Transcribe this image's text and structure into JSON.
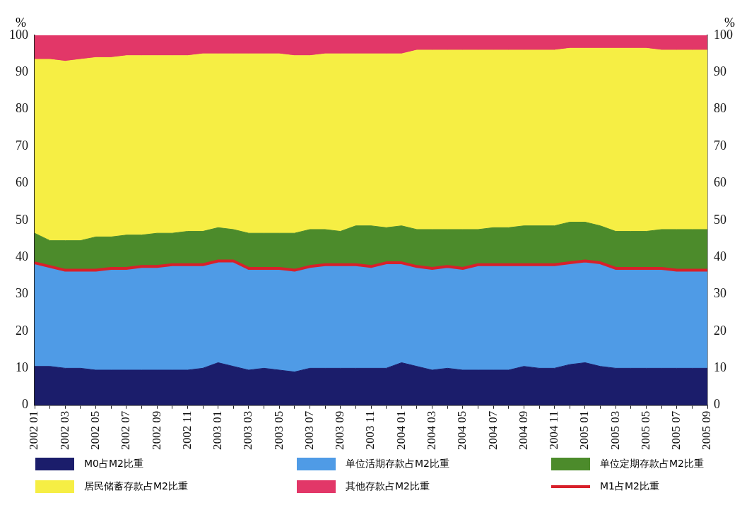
{
  "chart_data": {
    "type": "area",
    "stacked": true,
    "categories": [
      "2002 01",
      null,
      "2002 03",
      null,
      "2002 05",
      null,
      "2002 07",
      null,
      "2002 09",
      null,
      "2002 11",
      null,
      "2003 01",
      null,
      "2003 03",
      null,
      "2003 05",
      null,
      "2003 07",
      null,
      "2003 09",
      null,
      "2003 11",
      null,
      "2004 01",
      null,
      "2004 03",
      null,
      "2004 05",
      null,
      "2004 07",
      null,
      "2004 09",
      null,
      "2004 11",
      null,
      "2005 01",
      null,
      "2005 03",
      null,
      "2005 05",
      null,
      "2005 07",
      null,
      "2005 09"
    ],
    "ylabel": "%",
    "y2label": "%",
    "ylim": [
      0,
      100
    ],
    "yticks": [
      0,
      10,
      20,
      30,
      40,
      50,
      60,
      70,
      80,
      90,
      100
    ],
    "y2lim": [
      0,
      100
    ],
    "y2ticks": [
      0,
      10,
      20,
      30,
      40,
      50,
      60,
      70,
      80,
      90,
      100
    ],
    "grid": false,
    "legend": "bottom",
    "series": [
      {
        "name": "M0占M2比重",
        "color": "#1b1d6b",
        "values": [
          10.5,
          10.5,
          10,
          10,
          9.5,
          9.5,
          9.5,
          9.5,
          9.5,
          9.5,
          9.5,
          10,
          11.5,
          10.5,
          9.5,
          10,
          9.5,
          9,
          10,
          10,
          10,
          10,
          10,
          10,
          11.5,
          10.5,
          9.5,
          10,
          9.5,
          9.5,
          9.5,
          9.5,
          10.5,
          10,
          10,
          11,
          11.5,
          10.5,
          10,
          10,
          10,
          10,
          10,
          10,
          10
        ]
      },
      {
        "name": "单位活期存款占M2比重",
        "color": "#4f9be6",
        "values": [
          28,
          27,
          26.5,
          26.5,
          27,
          27.5,
          27.5,
          28,
          28,
          28.5,
          28.5,
          28,
          27.5,
          28.5,
          27.5,
          27,
          27.5,
          27.5,
          27.5,
          28,
          28,
          28,
          27.5,
          28.5,
          27,
          27,
          27.5,
          27.5,
          27.5,
          28.5,
          28.5,
          28.5,
          27.5,
          28,
          28,
          27.5,
          27.5,
          28,
          27,
          27,
          27,
          27,
          26.5,
          26.5,
          26.5
        ]
      },
      {
        "name": "单位定期存款占M2比重",
        "color": "#4c8b2b",
        "values": [
          8,
          7,
          8,
          8,
          9,
          8.5,
          9,
          8.5,
          9,
          8.5,
          9,
          9,
          9,
          8.5,
          9.5,
          9.5,
          9.5,
          10,
          10,
          9.5,
          9,
          10.5,
          11,
          9.5,
          10,
          10,
          10.5,
          10,
          10.5,
          9.5,
          10,
          10,
          10.5,
          10.5,
          10.5,
          11,
          10.5,
          10,
          10,
          10,
          10,
          10.5,
          11,
          11,
          11
        ]
      },
      {
        "name": "居民储蓄存款占M2比重",
        "color": "#f6ee44",
        "values": [
          47,
          49,
          48.5,
          49,
          48.5,
          48.5,
          48.5,
          48.5,
          48,
          48,
          47.5,
          48,
          47,
          47.5,
          48.5,
          48.5,
          48.5,
          48,
          47,
          47.5,
          48,
          46.5,
          46.5,
          47,
          46.5,
          48.5,
          48.5,
          48.5,
          48.5,
          48.5,
          48,
          48,
          47.5,
          47.5,
          47.5,
          47,
          47,
          48,
          49.5,
          49.5,
          49.5,
          48.5,
          48.5,
          48.5,
          48.5
        ]
      },
      {
        "name": "其他存款占M2比重",
        "color": "#e23768",
        "values": [
          6.5,
          6.5,
          7,
          6.5,
          6,
          6,
          5.5,
          5.5,
          5.5,
          5.5,
          5.5,
          5,
          5,
          5,
          5,
          5,
          5,
          5.5,
          5.5,
          5,
          5,
          5,
          5,
          5,
          5,
          4,
          4,
          4,
          4,
          4,
          4,
          4,
          4,
          4,
          4,
          3.5,
          3.5,
          3.5,
          3.5,
          3.5,
          3.5,
          4,
          4,
          4,
          4
        ]
      },
      {
        "name": "M1占M2比重",
        "type": "line",
        "color": "#d8202a",
        "values": [
          38.5,
          37.5,
          36.5,
          36.5,
          36.5,
          37,
          37,
          37.5,
          37.5,
          38,
          38,
          38,
          39,
          39,
          37,
          37,
          37,
          36.5,
          37.5,
          38,
          38,
          38,
          37.5,
          38.5,
          38.5,
          37.5,
          37,
          37.5,
          37,
          38,
          38,
          38,
          38,
          38,
          38,
          38.5,
          39,
          38.5,
          37,
          37,
          37,
          37,
          36.5,
          36.5,
          36.5
        ]
      }
    ]
  }
}
